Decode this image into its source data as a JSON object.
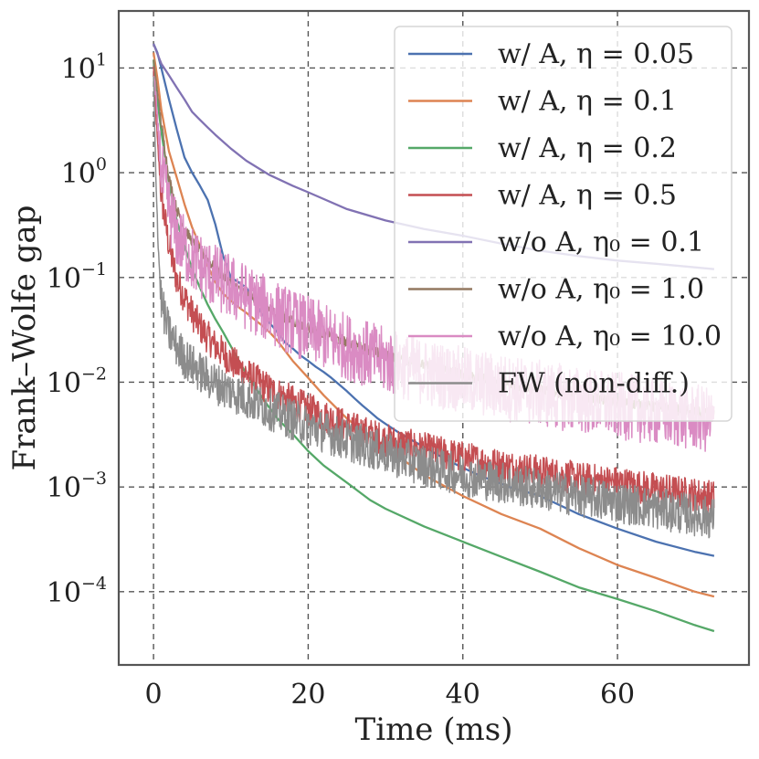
{
  "chart_data": {
    "type": "line",
    "xlabel": "Time (ms)",
    "ylabel": "Frank–Wolfe gap",
    "xlim": [
      -4.5,
      77
    ],
    "ylim": [
      2e-05,
      35
    ],
    "yscale": "log",
    "grid": true,
    "legend_position": "top-right",
    "x_ticks": [
      {
        "value": 0,
        "label": "0"
      },
      {
        "value": 20,
        "label": "20"
      },
      {
        "value": 40,
        "label": "40"
      },
      {
        "value": 60,
        "label": "60"
      }
    ],
    "y_ticks": [
      {
        "value": 10,
        "base": "10",
        "exp": "1"
      },
      {
        "value": 1,
        "base": "10",
        "exp": "0"
      },
      {
        "value": 0.1,
        "base": "10",
        "exp": "−1"
      },
      {
        "value": 0.01,
        "base": "10",
        "exp": "−2"
      },
      {
        "value": 0.001,
        "base": "10",
        "exp": "−3"
      },
      {
        "value": 0.0001,
        "base": "10",
        "exp": "−4"
      }
    ],
    "series": [
      {
        "name": "w/ A, η = 0.05",
        "color": "#4c72b0",
        "noise": 0,
        "x": [
          0,
          0.5,
          1,
          2,
          3,
          4,
          5,
          6,
          7,
          8,
          9,
          10,
          11,
          12,
          13,
          14,
          15,
          16,
          17,
          18,
          19,
          20,
          21,
          22,
          23,
          24,
          25,
          26,
          27,
          28,
          29,
          30,
          32,
          35,
          38,
          42,
          46,
          50,
          55,
          60,
          65,
          70,
          72.5
        ],
        "y": [
          17,
          14,
          10,
          5,
          2.6,
          1.4,
          1.0,
          0.75,
          0.55,
          0.32,
          0.16,
          0.1,
          0.09,
          0.08,
          0.06,
          0.045,
          0.037,
          0.03,
          0.024,
          0.021,
          0.018,
          0.016,
          0.014,
          0.0125,
          0.011,
          0.0095,
          0.0082,
          0.007,
          0.006,
          0.0052,
          0.0045,
          0.004,
          0.0032,
          0.0024,
          0.0018,
          0.0013,
          0.001,
          0.00082,
          0.00055,
          0.0004,
          0.0003,
          0.00024,
          0.00022
        ]
      },
      {
        "name": "w/ A, η = 0.1",
        "color": "#dd8452",
        "noise": 0,
        "x": [
          0,
          0.5,
          1,
          2,
          3,
          4,
          5,
          6,
          7,
          8,
          9,
          10,
          11,
          12,
          13,
          14,
          15,
          16,
          17,
          18,
          20,
          22,
          25,
          28,
          30,
          35,
          40,
          45,
          50,
          55,
          60,
          65,
          70,
          72.5
        ],
        "y": [
          14,
          8,
          4,
          1.6,
          0.9,
          0.5,
          0.3,
          0.2,
          0.13,
          0.09,
          0.07,
          0.06,
          0.052,
          0.046,
          0.04,
          0.035,
          0.03,
          0.025,
          0.02,
          0.016,
          0.011,
          0.0075,
          0.0045,
          0.003,
          0.0024,
          0.0013,
          0.00082,
          0.00055,
          0.0004,
          0.00026,
          0.00018,
          0.000135,
          0.0001,
          9e-05
        ]
      },
      {
        "name": "w/ A, η = 0.2",
        "color": "#55a868",
        "noise": 0,
        "x": [
          0,
          0.5,
          1,
          2,
          3,
          4,
          5,
          6,
          7,
          8,
          9,
          10,
          12,
          14,
          16,
          18,
          20,
          22,
          25,
          28,
          30,
          35,
          40,
          45,
          50,
          55,
          60,
          65,
          70,
          72.5
        ],
        "y": [
          12,
          5,
          2.5,
          0.8,
          0.35,
          0.2,
          0.12,
          0.08,
          0.055,
          0.04,
          0.03,
          0.022,
          0.012,
          0.0072,
          0.0045,
          0.0032,
          0.0022,
          0.0016,
          0.0011,
          0.00075,
          0.00062,
          0.00042,
          0.0003,
          0.000215,
          0.000155,
          0.00011,
          8.5e-05,
          6.5e-05,
          4.8e-05,
          4.2e-05
        ]
      },
      {
        "name": "w/ A, η = 0.5",
        "color": "#c44e52",
        "noise": 0.16,
        "x": [
          0,
          0.5,
          1,
          2,
          3,
          4,
          5,
          6,
          7,
          8,
          9,
          10,
          12,
          15,
          18,
          20,
          25,
          30,
          35,
          40,
          45,
          50,
          55,
          60,
          65,
          70,
          72.5
        ],
        "y": [
          10,
          2,
          0.6,
          0.2,
          0.095,
          0.065,
          0.045,
          0.034,
          0.027,
          0.022,
          0.019,
          0.016,
          0.012,
          0.0085,
          0.0065,
          0.0055,
          0.0038,
          0.0028,
          0.0023,
          0.0019,
          0.0016,
          0.0014,
          0.0012,
          0.0011,
          0.00095,
          0.00085,
          0.0008
        ]
      },
      {
        "name": "w/o A, η₀ = 0.1",
        "color": "#8172b3",
        "noise": 0,
        "x": [
          0,
          1,
          2,
          3,
          4,
          5,
          6,
          7,
          8,
          10,
          12,
          15,
          18,
          20,
          25,
          30,
          35,
          40,
          45,
          50,
          55,
          60,
          65,
          70,
          72.5
        ],
        "y": [
          17,
          11,
          8.5,
          6.5,
          5,
          3.8,
          3.2,
          2.7,
          2.3,
          1.7,
          1.3,
          0.95,
          0.75,
          0.65,
          0.45,
          0.35,
          0.29,
          0.25,
          0.21,
          0.18,
          0.16,
          0.145,
          0.135,
          0.125,
          0.12
        ]
      },
      {
        "name": "w/o A, η₀ = 1.0",
        "color": "#937860",
        "noise": 0.05,
        "x": [
          0,
          0.5,
          1,
          2,
          3,
          4,
          5,
          6,
          7,
          8,
          10,
          12,
          15,
          18,
          20,
          25,
          30,
          35,
          40,
          45,
          50,
          55,
          60,
          65,
          70,
          72.5
        ],
        "y": [
          12,
          6,
          3,
          0.9,
          0.45,
          0.3,
          0.22,
          0.18,
          0.15,
          0.12,
          0.09,
          0.07,
          0.05,
          0.038,
          0.033,
          0.024,
          0.018,
          0.0145,
          0.012,
          0.0098,
          0.0085,
          0.0074,
          0.0065,
          0.0058,
          0.0052,
          0.005
        ]
      },
      {
        "name": "w/o A, η₀ = 10.0",
        "color": "#da8bc3",
        "noise": 0.32,
        "x": [
          0,
          0.5,
          1,
          2,
          3,
          4,
          5,
          6,
          8,
          10,
          12,
          15,
          18,
          20,
          25,
          30,
          35,
          40,
          45,
          50,
          55,
          60,
          65,
          70,
          72.5
        ],
        "y": [
          10,
          3,
          1,
          0.45,
          0.25,
          0.19,
          0.15,
          0.13,
          0.1,
          0.08,
          0.065,
          0.048,
          0.037,
          0.032,
          0.022,
          0.016,
          0.0125,
          0.0105,
          0.009,
          0.0078,
          0.0068,
          0.006,
          0.0052,
          0.0046,
          0.0042
        ]
      },
      {
        "name": "FW (non-diff.)",
        "color": "#8c8c8c",
        "noise": 0.2,
        "x": [
          0,
          0.3,
          0.6,
          1,
          1.5,
          2,
          3,
          4,
          5,
          6,
          7,
          8,
          10,
          12,
          15,
          18,
          20,
          25,
          30,
          35,
          40,
          45,
          50,
          55,
          60,
          65,
          70,
          72.5
        ],
        "y": [
          8,
          1,
          0.2,
          0.06,
          0.04,
          0.03,
          0.022,
          0.017,
          0.0145,
          0.0125,
          0.011,
          0.0098,
          0.0082,
          0.007,
          0.0055,
          0.0044,
          0.0038,
          0.0028,
          0.0021,
          0.0016,
          0.0013,
          0.0011,
          0.00095,
          0.00082,
          0.00072,
          0.00062,
          0.00054,
          0.0005
        ]
      }
    ]
  }
}
